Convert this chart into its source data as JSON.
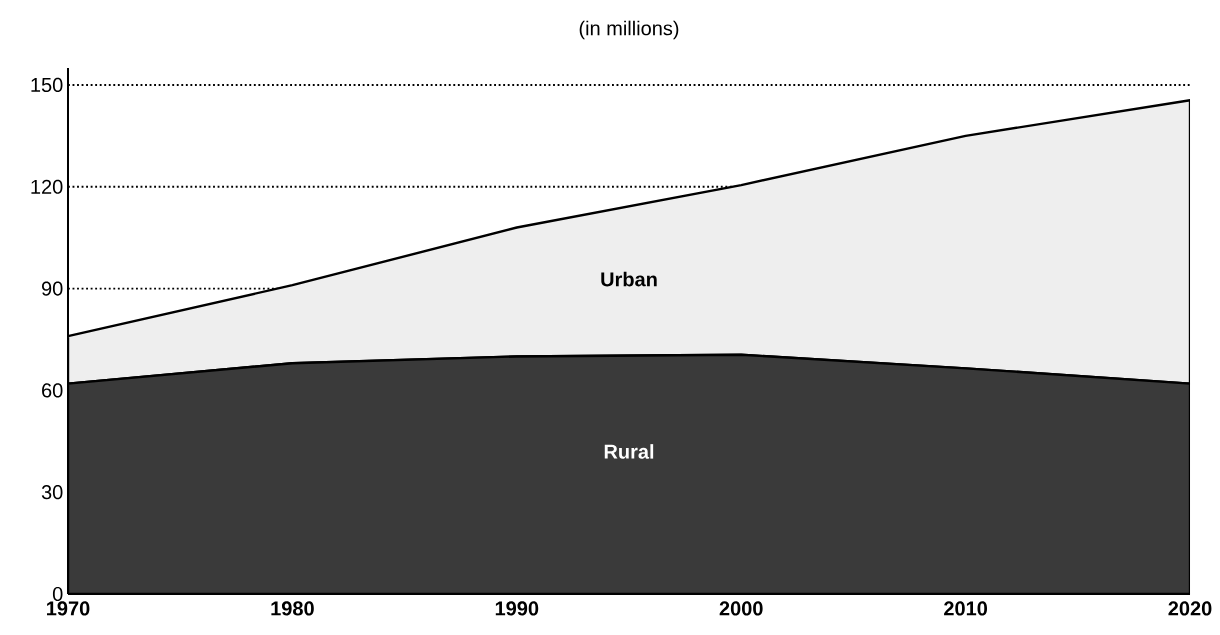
{
  "chart_data": {
    "type": "area",
    "stacked": true,
    "title": "(in millions)",
    "x": [
      1970,
      1980,
      1990,
      2000,
      2010,
      2020
    ],
    "series": [
      {
        "name": "Rural",
        "color": "#3a3a3a",
        "values": [
          62,
          68,
          70,
          70.5,
          66.5,
          62
        ]
      },
      {
        "name": "Urban",
        "color": "#eeeeee",
        "values": [
          14,
          23,
          38,
          50,
          68.5,
          83.5
        ]
      }
    ],
    "xlim": [
      1970,
      2020
    ],
    "xticks": [
      1970,
      1980,
      1990,
      2000,
      2010,
      2020
    ],
    "ylim": [
      0,
      155
    ],
    "yticks": [
      0,
      30,
      60,
      90,
      120,
      150
    ],
    "grid": "y",
    "legend": false
  }
}
